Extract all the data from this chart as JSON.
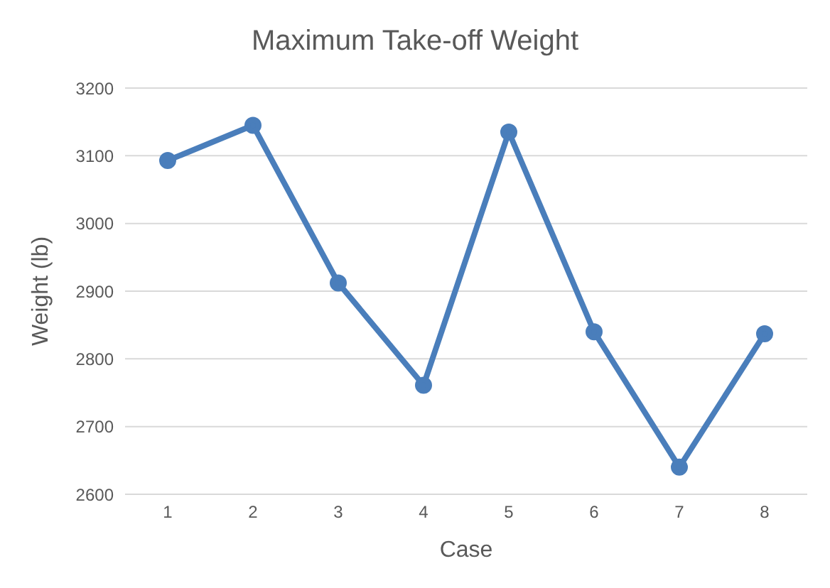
{
  "chart_data": {
    "type": "line",
    "title": "Maximum Take-off Weight",
    "xlabel": "Case",
    "ylabel": "Weight (lb)",
    "categories": [
      "1",
      "2",
      "3",
      "4",
      "5",
      "6",
      "7",
      "8"
    ],
    "series": [
      {
        "color": "#4a7ebb",
        "values": [
          3093,
          3145,
          2912,
          2761,
          3135,
          2840,
          2640,
          2837
        ]
      }
    ],
    "ylim": [
      2600,
      3200
    ],
    "yticks": [
      2600,
      2700,
      2800,
      2900,
      3000,
      3100,
      3200
    ],
    "grid": "y",
    "marker": "circle"
  }
}
